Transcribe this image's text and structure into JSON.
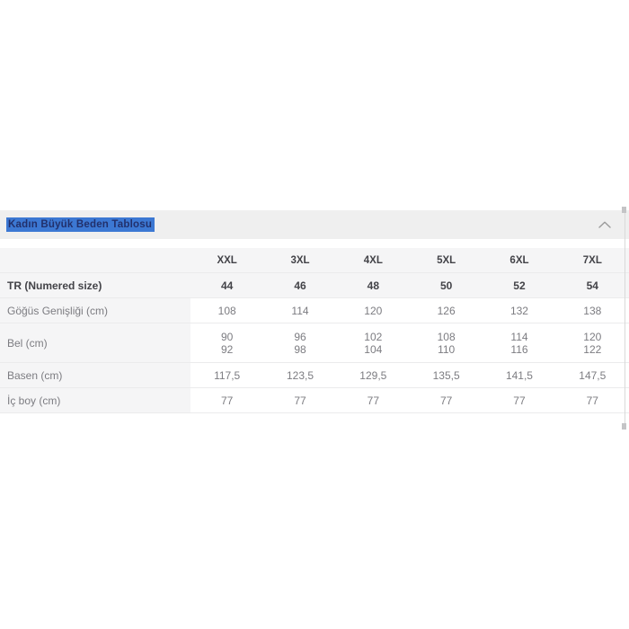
{
  "accent": {
    "selection_blue": "#3c78d3",
    "title_text": "#22306b",
    "header_bar_bg": "#efefef",
    "row_shade_bg": "#f5f5f6",
    "chevron_gray": "#9a9a9a"
  },
  "section": {
    "title": "Kadın Büyük Beden Tablosu",
    "chevron_icon": "chevron-up"
  },
  "chart_data": {
    "type": "table",
    "title": "Kadın Büyük Beden Tablosu",
    "columns": [
      "",
      "XXL",
      "3XL",
      "4XL",
      "5XL",
      "6XL",
      "7XL"
    ],
    "rows": [
      [
        "TR (Numered size)",
        "44",
        "46",
        "48",
        "50",
        "52",
        "54"
      ],
      [
        "Göğüs Genişliği (cm)",
        "108",
        "114",
        "120",
        "126",
        "132",
        "138"
      ],
      [
        "Bel (cm)",
        "90 92",
        "96 98",
        "102 104",
        "108 110",
        "114 116",
        "120 122"
      ],
      [
        "Basen (cm)",
        "117,5",
        "123,5",
        "129,5",
        "135,5",
        "141,5",
        "147,5"
      ],
      [
        "İç boy (cm)",
        "77",
        "77",
        "77",
        "77",
        "77",
        "77"
      ]
    ]
  },
  "table": {
    "sizes": [
      "XXL",
      "3XL",
      "4XL",
      "5XL",
      "6XL",
      "7XL"
    ],
    "rows": [
      {
        "label": "TR (Numered size)",
        "values": [
          [
            "44"
          ],
          [
            "46"
          ],
          [
            "48"
          ],
          [
            "50"
          ],
          [
            "52"
          ],
          [
            "54"
          ]
        ],
        "shaded": true,
        "bold": true,
        "tall": false
      },
      {
        "label": "Göğüs Genişliği (cm)",
        "values": [
          [
            "108"
          ],
          [
            "114"
          ],
          [
            "120"
          ],
          [
            "126"
          ],
          [
            "132"
          ],
          [
            "138"
          ]
        ],
        "shaded": false,
        "bold": false,
        "tall": false
      },
      {
        "label": "Bel (cm)",
        "values": [
          [
            "90",
            "92"
          ],
          [
            "96",
            "98"
          ],
          [
            "102",
            "104"
          ],
          [
            "108",
            "110"
          ],
          [
            "114",
            "116"
          ],
          [
            "120",
            "122"
          ]
        ],
        "shaded": false,
        "bold": false,
        "tall": true
      },
      {
        "label": "Basen (cm)",
        "values": [
          [
            "117,5"
          ],
          [
            "123,5"
          ],
          [
            "129,5"
          ],
          [
            "135,5"
          ],
          [
            "141,5"
          ],
          [
            "147,5"
          ]
        ],
        "shaded": false,
        "bold": false,
        "tall": false
      },
      {
        "label": "İç boy (cm)",
        "values": [
          [
            "77"
          ],
          [
            "77"
          ],
          [
            "77"
          ],
          [
            "77"
          ],
          [
            "77"
          ],
          [
            "77"
          ]
        ],
        "shaded": false,
        "bold": false,
        "tall": false
      }
    ]
  }
}
